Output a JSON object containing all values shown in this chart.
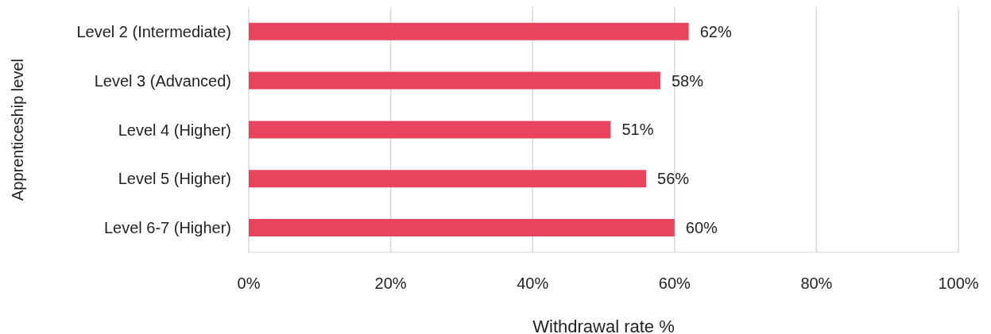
{
  "chart_data": {
    "type": "bar",
    "orientation": "horizontal",
    "ylabel": "Apprenticeship level",
    "xlabel": "Withdrawal rate %",
    "categories": [
      "Level 2 (Intermediate)",
      "Level 3 (Advanced)",
      "Level 4 (Higher)",
      "Level 5 (Higher)",
      "Level 6-7 (Higher)"
    ],
    "values": [
      62,
      58,
      51,
      56,
      60
    ],
    "value_labels": [
      "62%",
      "58%",
      "51%",
      "56%",
      "60%"
    ],
    "color": "#e8445e",
    "xlim": [
      0,
      100
    ],
    "xticks": [
      {
        "value": 0,
        "label": "0%"
      },
      {
        "value": 20,
        "label": "20%"
      },
      {
        "value": 40,
        "label": "40%"
      },
      {
        "value": 60,
        "label": "60%"
      },
      {
        "value": 80,
        "label": "80%"
      },
      {
        "value": 100,
        "label": "100%"
      }
    ],
    "grid": "x"
  }
}
